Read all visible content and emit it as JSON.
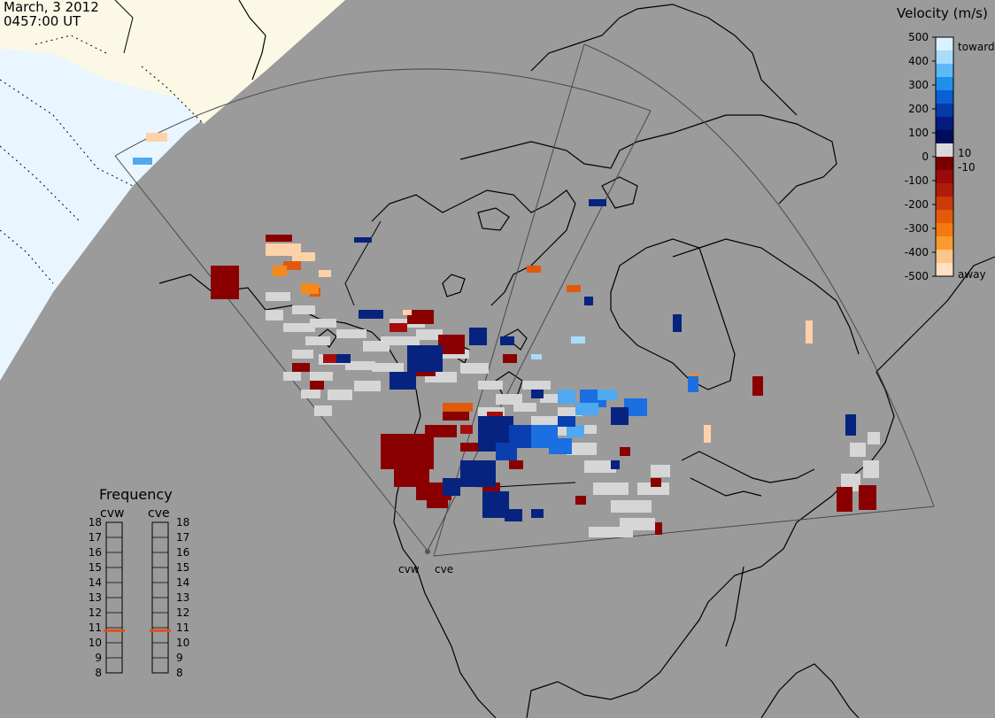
{
  "header": {
    "date": "March, 3 2012",
    "time": "0457:00 UT"
  },
  "velocity_legend": {
    "title": "Velocity (m/s)",
    "ticks": [
      "500",
      "400",
      "300",
      "200",
      "100",
      "0",
      "-100",
      "-200",
      "-300",
      "-400",
      "-500"
    ],
    "extra_labels": {
      "toward": "toward",
      "away": "away",
      "pos_small": "10",
      "neg_small": "-10"
    },
    "colors": [
      "#d9f2ff",
      "#a8dcfb",
      "#5db8f7",
      "#1f8fee",
      "#0a5fd4",
      "#063aa8",
      "#051a80",
      "#000e5a",
      "#d9d9d9",
      "#7a0000",
      "#9b0a0a",
      "#b01c0a",
      "#cc3a0a",
      "#e35a08",
      "#f27a0e",
      "#fb9a30",
      "#fdc58a",
      "#ffe0c2"
    ]
  },
  "frequency_panel": {
    "title": "Frequency",
    "radars": [
      "cvw",
      "cve"
    ],
    "scale": [
      "18",
      "17",
      "16",
      "15",
      "14",
      "13",
      "12",
      "11",
      "10",
      "9",
      "8"
    ],
    "cvw_mhz": 10.8,
    "cve_mhz": 10.8,
    "marker_color": "#e0501e"
  },
  "map": {
    "land_color": "#9b9b9b",
    "ocean_night_color": "#e9f6ff",
    "day_land_color": "#fbf9e6",
    "radar_labels": [
      "cvw",
      "cve"
    ]
  }
}
